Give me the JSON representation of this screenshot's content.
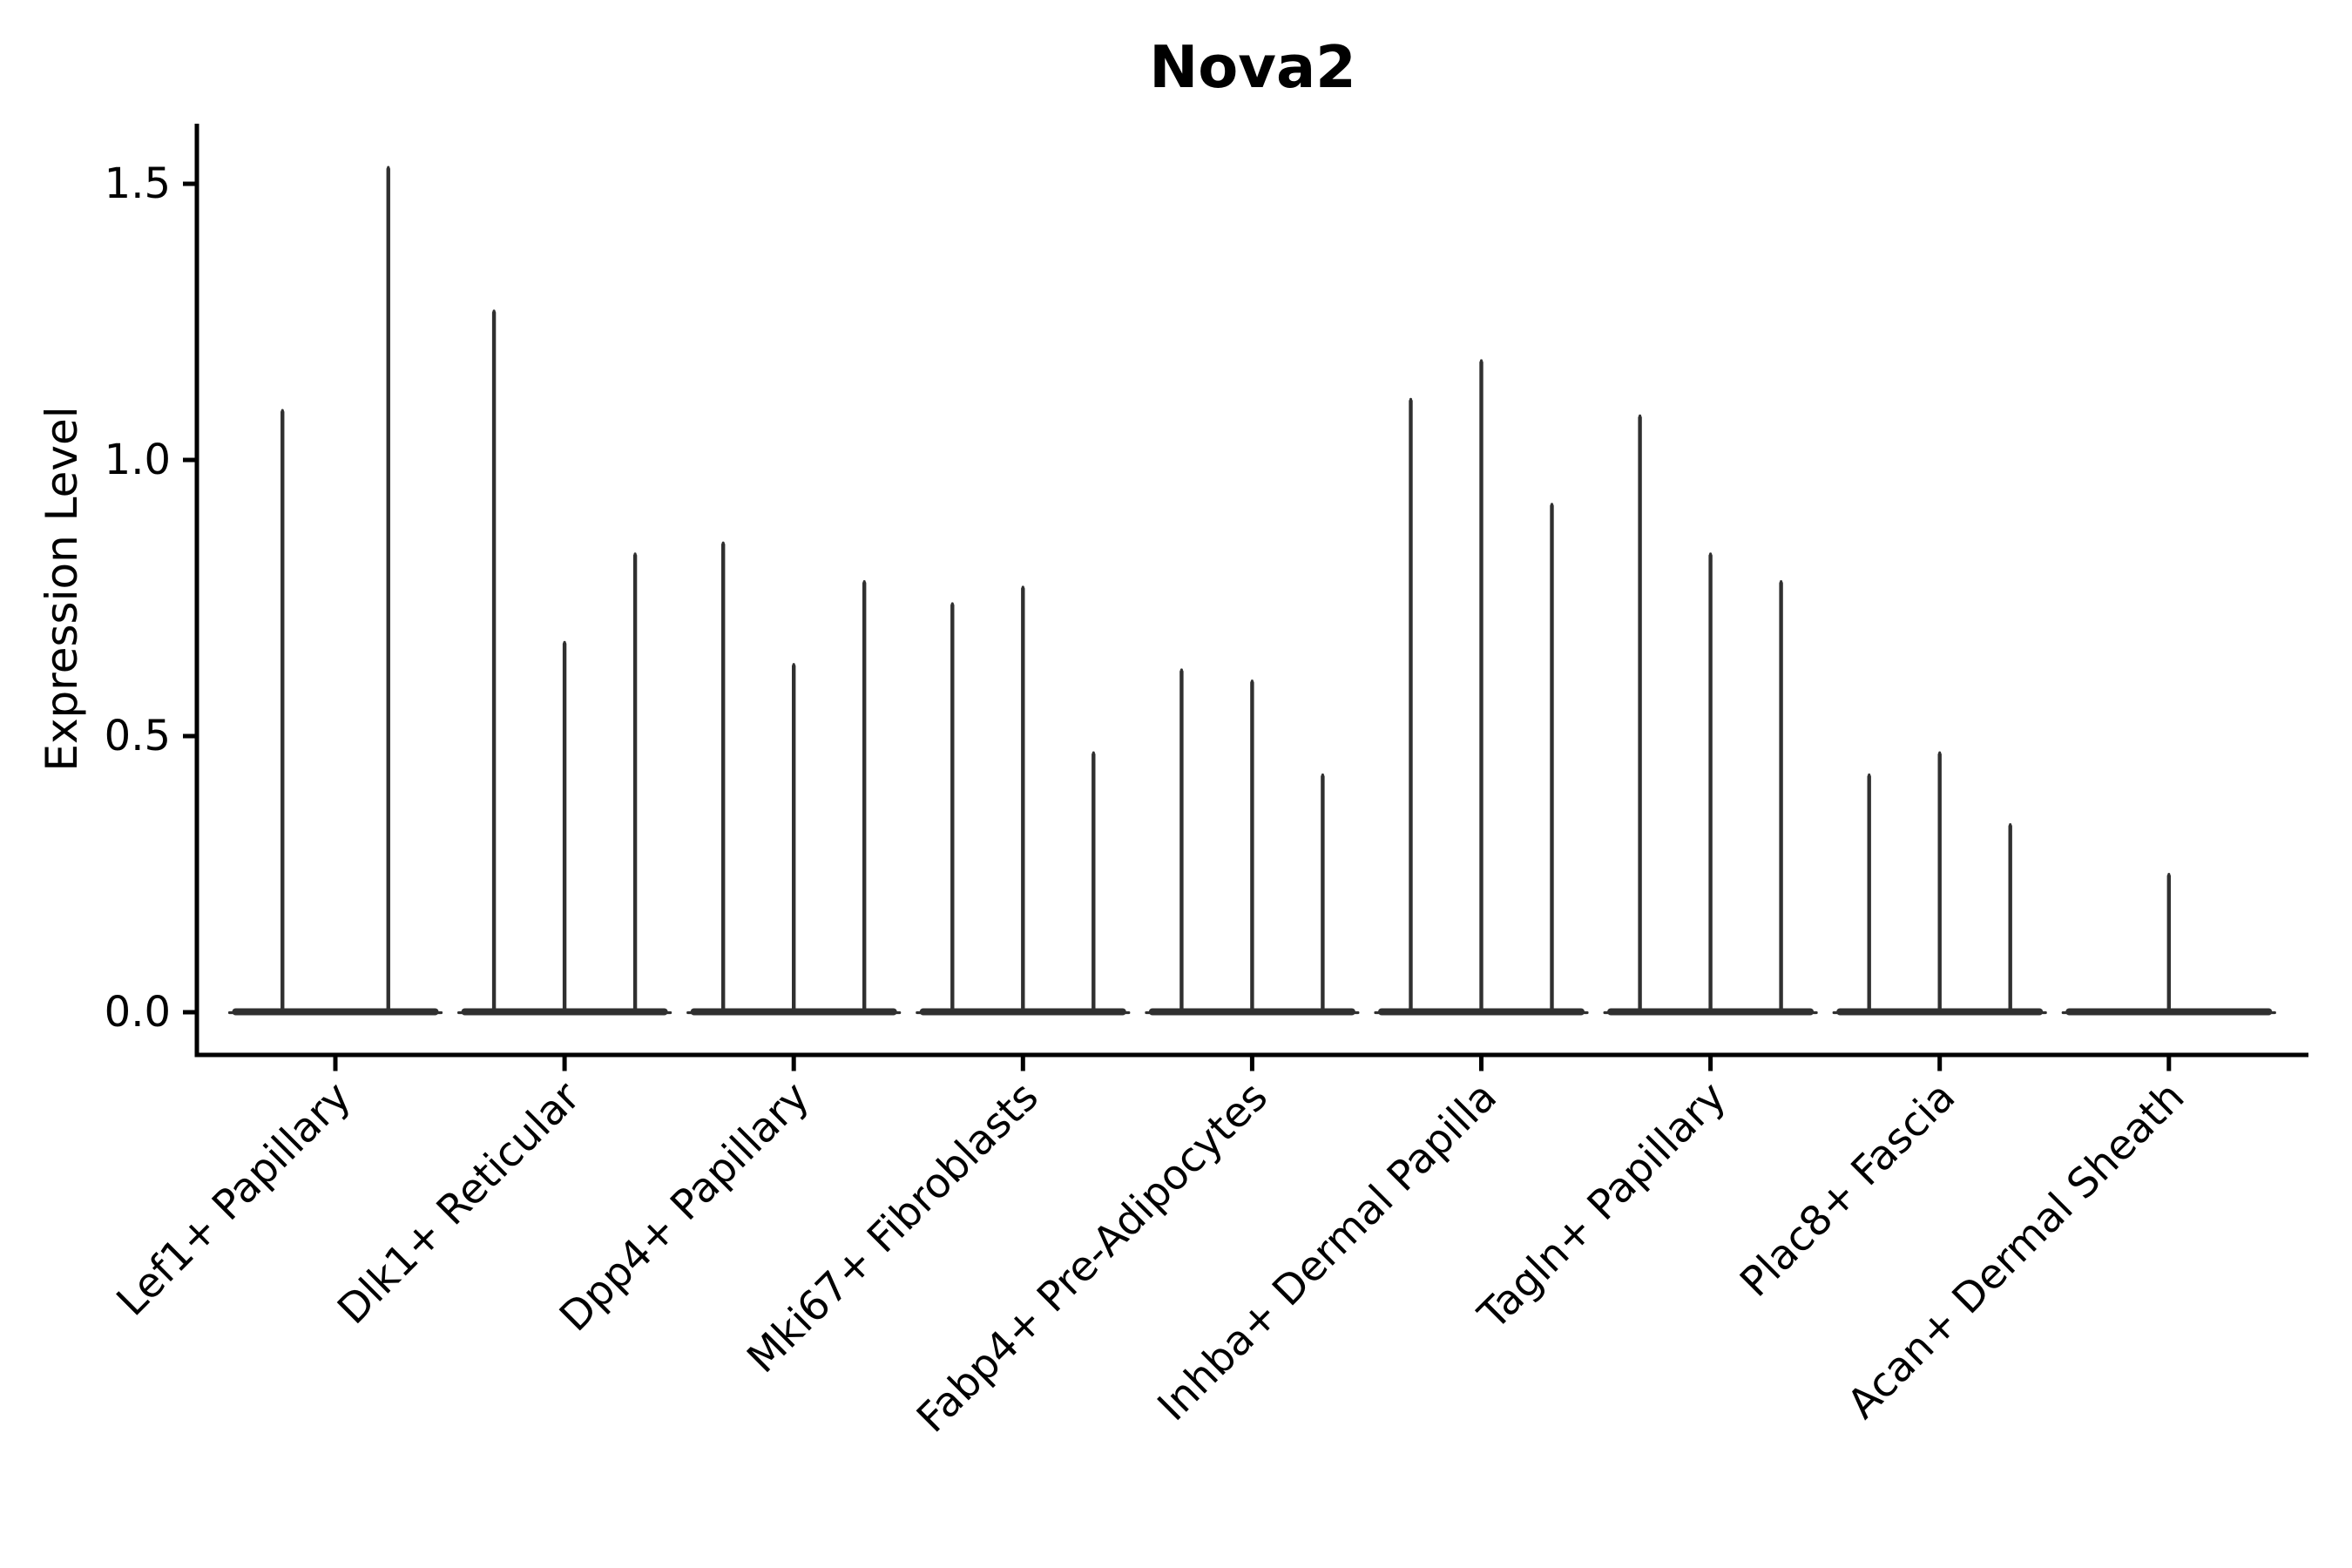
{
  "page": {
    "background": "#ffffff"
  },
  "chart_data": {
    "type": "violin",
    "title": "Nova2",
    "ylabel": "Expression Level",
    "xlabel": "",
    "ytick_labels": [
      "0.0",
      "0.5",
      "1.0",
      "1.5"
    ],
    "ytick_values": [
      0.0,
      0.5,
      1.0,
      1.5
    ],
    "ylim": [
      -0.08,
      1.61
    ],
    "grid": false,
    "legend": false,
    "x_tick_rotation_deg": 45,
    "categories": [
      "Lef1+ Papillary",
      "Dlk1+ Reticular",
      "Dpp4+ Papillary",
      "Mki67+ Fibroblasts",
      "Fabp4+ Pre-Adipocytes",
      "Inhba+ Dermal Papilla",
      "Tagln+ Papillary",
      "Plac8+ Fascia",
      "Acan+ Dermal Sheath"
    ],
    "groups": [
      {
        "label": "Lef1+ Papillary",
        "violin_peaks": [
          1.09,
          1.53
        ]
      },
      {
        "label": "Dlk1+ Reticular",
        "violin_peaks": [
          1.27,
          0.67,
          0.83
        ]
      },
      {
        "label": "Dpp4+ Papillary",
        "violin_peaks": [
          0.85,
          0.63,
          0.78
        ]
      },
      {
        "label": "Mki67+ Fibroblasts",
        "violin_peaks": [
          0.74,
          0.77,
          0.47
        ]
      },
      {
        "label": "Fabp4+ Pre-Adipocytes",
        "violin_peaks": [
          0.62,
          0.6,
          0.43
        ]
      },
      {
        "label": "Inhba+ Dermal Papilla",
        "violin_peaks": [
          1.11,
          1.18,
          0.92
        ]
      },
      {
        "label": "Tagln+ Papillary",
        "violin_peaks": [
          1.08,
          0.83,
          0.78
        ]
      },
      {
        "label": "Plac8+ Fascia",
        "violin_peaks": [
          0.43,
          0.47,
          0.34
        ]
      },
      {
        "label": "Acan+ Dermal Sheath",
        "violin_peaks": [
          0.25
        ]
      }
    ],
    "style": {
      "violin_color": "#303030",
      "axis_color": "#000000",
      "text_color": "#000000",
      "background": "#ffffff"
    }
  }
}
